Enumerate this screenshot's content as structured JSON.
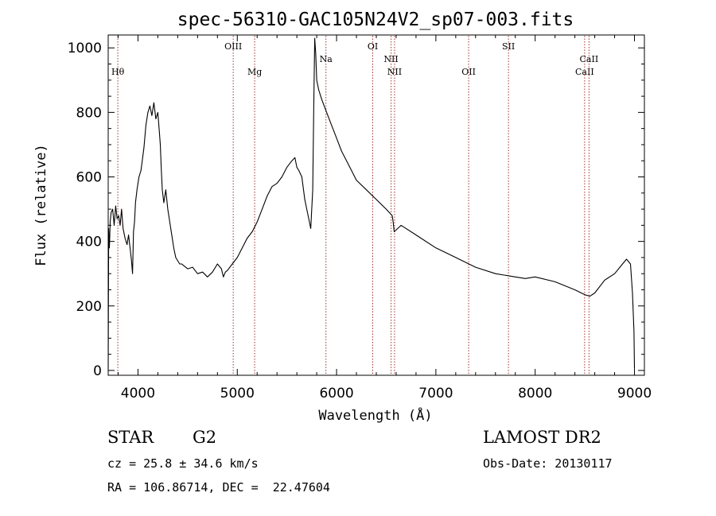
{
  "header": {
    "title": "spec-56310-GAC105N24V2_sp07-003.fits"
  },
  "info": {
    "class": "STAR",
    "subclass": "G2",
    "survey": "LAMOST DR2",
    "cz": "cz = 25.8 ± 34.6 km/s",
    "obs_date": "Obs-Date: 20130117",
    "coords": "RA = 106.86714, DEC =  22.47604"
  },
  "colors": {
    "spectrum": "#000000",
    "line_markers": "#a03030"
  },
  "chart_data": {
    "type": "line",
    "title": "spec-56310-GAC105N24V2_sp07-003.fits",
    "xlabel": "Wavelength (Å)",
    "ylabel": "Flux (relative)",
    "xlim": [
      3700,
      9100
    ],
    "ylim": [
      -15,
      1040
    ],
    "xticks": [
      4000,
      5000,
      6000,
      7000,
      8000,
      9000
    ],
    "yticks": [
      0,
      200,
      400,
      600,
      800,
      1000
    ],
    "grid": false,
    "legend": "none",
    "series": [
      {
        "x": [
          3700,
          3705,
          3712,
          3720,
          3730,
          3745,
          3760,
          3775,
          3790,
          3805,
          3820,
          3835,
          3850,
          3870,
          3890,
          3905,
          3920,
          3935,
          3945,
          3955,
          3965,
          3975,
          3990,
          4010,
          4030,
          4060,
          4080,
          4100,
          4120,
          4140,
          4160,
          4180,
          4200,
          4215,
          4225,
          4235,
          4245,
          4260,
          4280,
          4300,
          4320,
          4340,
          4360,
          4380,
          4400,
          4420,
          4440,
          4460,
          4480,
          4500,
          4550,
          4600,
          4650,
          4700,
          4750,
          4800,
          4840,
          4860,
          4880,
          4900,
          4950,
          5000,
          5050,
          5100,
          5150,
          5200,
          5250,
          5300,
          5350,
          5400,
          5450,
          5500,
          5550,
          5580,
          5600,
          5620,
          5650,
          5680,
          5720,
          5740,
          5760,
          5770,
          5780,
          5790,
          5800,
          5820,
          5850,
          5900,
          5950,
          6000,
          6050,
          6100,
          6150,
          6200,
          6300,
          6400,
          6500,
          6560,
          6570,
          6580,
          6650,
          6800,
          7000,
          7200,
          7400,
          7600,
          7800,
          7900,
          8000,
          8200,
          8400,
          8500,
          8550,
          8600,
          8700,
          8800,
          8880,
          8920,
          8960,
          8980,
          8995,
          9000
        ],
        "y": [
          5,
          440,
          380,
          460,
          490,
          500,
          450,
          510,
          470,
          480,
          450,
          500,
          440,
          410,
          390,
          420,
          380,
          340,
          300,
          430,
          460,
          520,
          560,
          600,
          620,
          690,
          760,
          800,
          820,
          790,
          830,
          780,
          800,
          740,
          700,
          620,
          560,
          520,
          560,
          500,
          460,
          420,
          380,
          350,
          340,
          330,
          330,
          325,
          320,
          315,
          320,
          300,
          305,
          290,
          305,
          330,
          315,
          290,
          305,
          310,
          330,
          350,
          380,
          410,
          430,
          460,
          500,
          540,
          570,
          580,
          600,
          630,
          650,
          660,
          630,
          620,
          600,
          530,
          470,
          440,
          560,
          820,
          1030,
          980,
          900,
          870,
          840,
          800,
          760,
          720,
          680,
          650,
          620,
          590,
          560,
          530,
          500,
          480,
          460,
          430,
          450,
          420,
          380,
          350,
          320,
          300,
          290,
          285,
          290,
          275,
          250,
          235,
          230,
          240,
          280,
          300,
          330,
          345,
          330,
          240,
          120,
          5
        ]
      }
    ],
    "lines": [
      {
        "name": "Hθ",
        "wavelength": 3797,
        "pos": "low"
      },
      {
        "name": "OIII",
        "wavelength": 4959,
        "pos": "high"
      },
      {
        "name": "Mg",
        "wavelength": 5175,
        "pos": "low"
      },
      {
        "name": "Na",
        "wavelength": 5893,
        "pos": "mid"
      },
      {
        "name": "OI",
        "wavelength": 6364,
        "pos": "high"
      },
      {
        "name": "NII",
        "wavelength": 6549,
        "pos": "mid"
      },
      {
        "name": "NII",
        "wavelength": 6584,
        "pos": "low"
      },
      {
        "name": "OII",
        "wavelength": 7330,
        "pos": "low"
      },
      {
        "name": "SII",
        "wavelength": 7731,
        "pos": "high"
      },
      {
        "name": "CaII",
        "wavelength": 8498,
        "pos": "low"
      },
      {
        "name": "CaII",
        "wavelength": 8542,
        "pos": "mid"
      }
    ]
  }
}
